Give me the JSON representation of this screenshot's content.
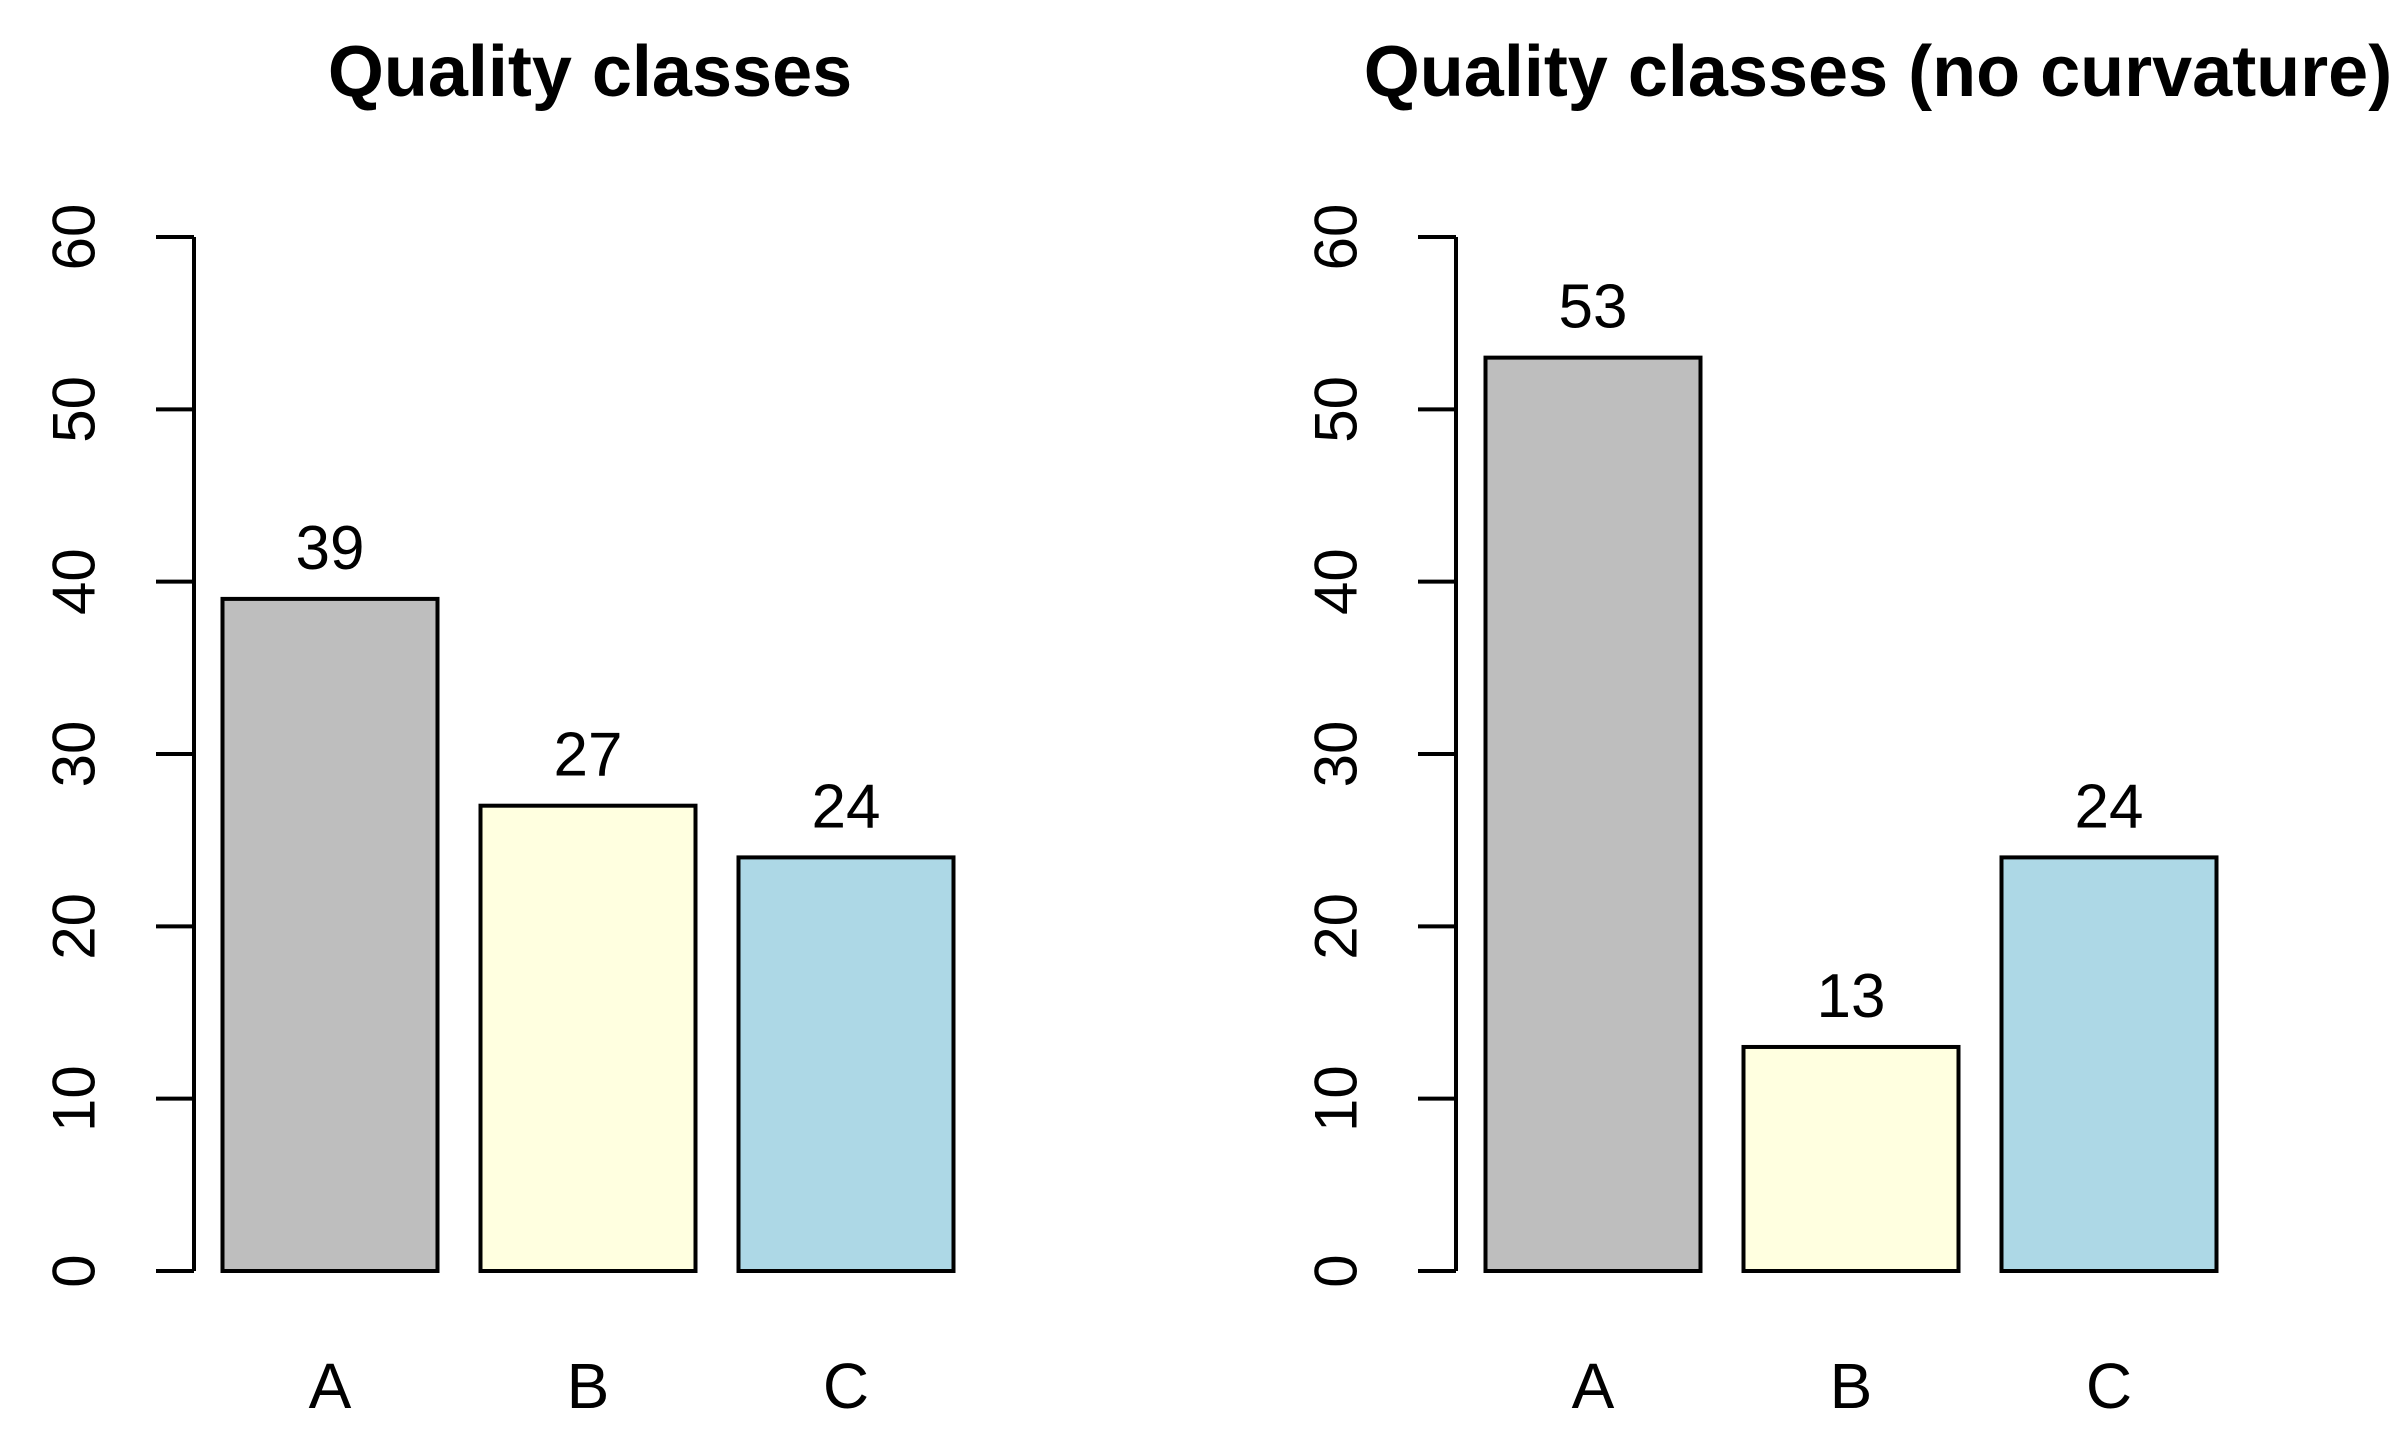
{
  "figure": {
    "background": "#FFFFFF",
    "axis_color": "#000000",
    "text_color": "#000000"
  },
  "chart_data": [
    {
      "type": "bar",
      "title": "Quality classes",
      "categories": [
        "A",
        "B",
        "C"
      ],
      "values": [
        39,
        27,
        24
      ],
      "bar_colors": [
        "#BEBEBE",
        "#FFFFE0",
        "#ADD8E6"
      ],
      "bar_border_color": "#000000",
      "show_value_labels": true,
      "xlabel": "",
      "ylabel": "",
      "ylim": [
        0,
        60
      ],
      "yticks": [
        0,
        10,
        20,
        30,
        40,
        50,
        60
      ],
      "ytick_label_rotation": -90,
      "grid": false,
      "legend": null
    },
    {
      "type": "bar",
      "title": "Quality classes (no curvature)",
      "categories": [
        "A",
        "B",
        "C"
      ],
      "values": [
        53,
        13,
        24
      ],
      "bar_colors": [
        "#BEBEBE",
        "#FFFFE0",
        "#ADD8E6"
      ],
      "bar_border_color": "#000000",
      "show_value_labels": true,
      "xlabel": "",
      "ylabel": "",
      "ylim": [
        0,
        60
      ],
      "yticks": [
        0,
        10,
        20,
        30,
        40,
        50,
        60
      ],
      "ytick_label_rotation": -90,
      "grid": false,
      "legend": null
    }
  ]
}
